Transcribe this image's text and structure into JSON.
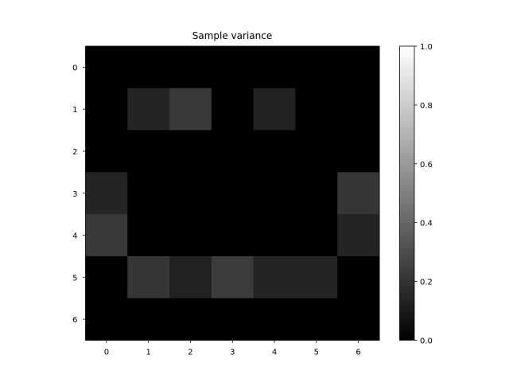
{
  "chart_data": {
    "type": "heatmap",
    "title": "Sample variance",
    "xlabel": "",
    "ylabel": "",
    "x_ticks": [
      "0",
      "1",
      "2",
      "3",
      "4",
      "5",
      "6"
    ],
    "y_ticks": [
      "0",
      "1",
      "2",
      "3",
      "4",
      "5",
      "6"
    ],
    "values": [
      [
        0,
        0,
        0,
        0,
        0,
        0,
        0
      ],
      [
        0,
        0.14,
        0.22,
        0,
        0.13,
        0,
        0
      ],
      [
        0,
        0,
        0,
        0,
        0,
        0,
        0
      ],
      [
        0.14,
        0,
        0,
        0,
        0,
        0,
        0.21
      ],
      [
        0.22,
        0,
        0,
        0,
        0,
        0,
        0.14
      ],
      [
        0,
        0.21,
        0.13,
        0.23,
        0.14,
        0.14,
        0
      ],
      [
        0,
        0,
        0,
        0,
        0,
        0,
        0
      ]
    ],
    "colormap": "gray",
    "vmin": 0,
    "vmax": 1,
    "colorbar": {
      "ticks": [
        "0.0",
        "0.2",
        "0.4",
        "0.6",
        "0.8",
        "1.0"
      ]
    },
    "grid": false
  }
}
